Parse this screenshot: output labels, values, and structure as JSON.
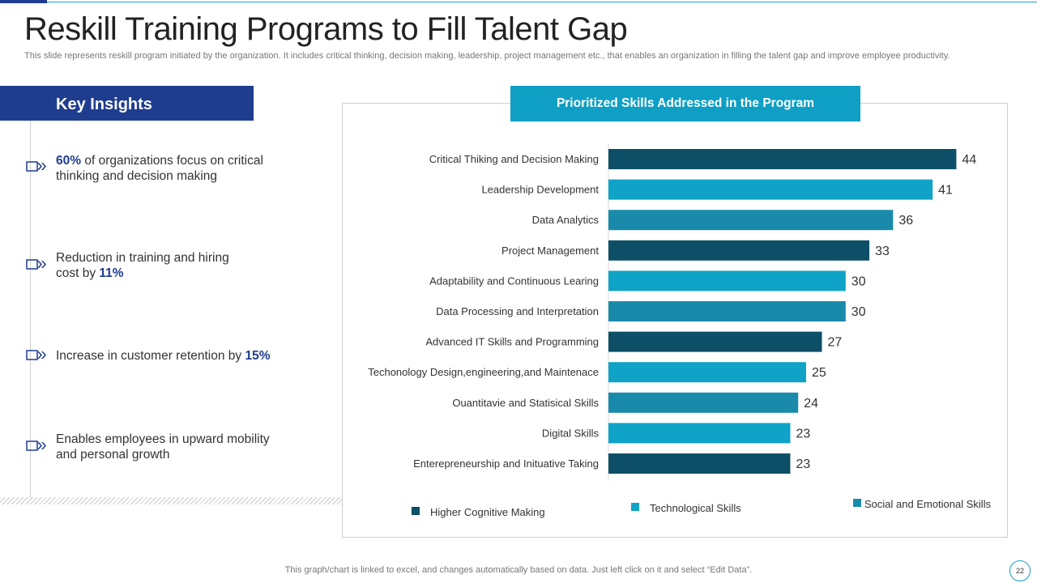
{
  "slide": {
    "title": "Reskill Training Programs to Fill Talent Gap",
    "subtitle": "This slide represents reskill program initiated by the organization. It includes critical thinking, decision making, leadership, project management etc., that enables an organization in filling the talent gap and improve employee productivity.",
    "footer": "This graph/chart is linked to excel,  and changes automatically based on data. Just left click on it and select “Edit Data”.",
    "page_number": "22"
  },
  "insights": {
    "header": "Key Insights",
    "items": [
      {
        "before": "",
        "bold": "60%",
        "after": " of organizations focus on critical thinking and decision making"
      },
      {
        "before": "Reduction in training and hiring cost by ",
        "bold": "11%",
        "after": ""
      },
      {
        "before": "Increase  in customer retention by ",
        "bold": "15%",
        "after": ""
      },
      {
        "before": "Enables employees in upward mobility and personal growth",
        "bold": "",
        "after": ""
      }
    ]
  },
  "colors": {
    "dark_teal": "#0c4f66",
    "mid_teal": "#1a8aaa",
    "light_teal": "#0fa3c7",
    "navy": "#1f3d8f"
  },
  "chart_data": {
    "type": "bar",
    "orientation": "horizontal",
    "title": "Prioritized Skills Addressed in the Program",
    "categories": [
      "Critical Thiking and Decision Making",
      "Leadership Development",
      "Data Analytics",
      "Project Management",
      "Adaptability and Continuous Learing",
      "Data Processing and Interpretation",
      "Advanced IT Skills and Programming",
      "Techonology Design,engineering,and Maintenace",
      "Ouantitavie and Statisical Skills",
      "Digital Skills",
      "Enterepreneurship and Inituative Taking"
    ],
    "values": [
      44,
      41,
      36,
      33,
      30,
      30,
      27,
      25,
      24,
      23,
      23
    ],
    "bar_groups": [
      0,
      1,
      2,
      0,
      1,
      2,
      0,
      1,
      2,
      1,
      0
    ],
    "legend": [
      {
        "name": "Higher Cognitive  Making",
        "color": "#0c4f66"
      },
      {
        "name": "Technological  Skills",
        "color": "#0fa3c7"
      },
      {
        "name": "Social and Emotional Skills",
        "color": "#1a8aaa"
      }
    ],
    "legend_position": "bottom",
    "xlim": [
      0,
      50
    ],
    "grid": false,
    "data_labels": true
  }
}
